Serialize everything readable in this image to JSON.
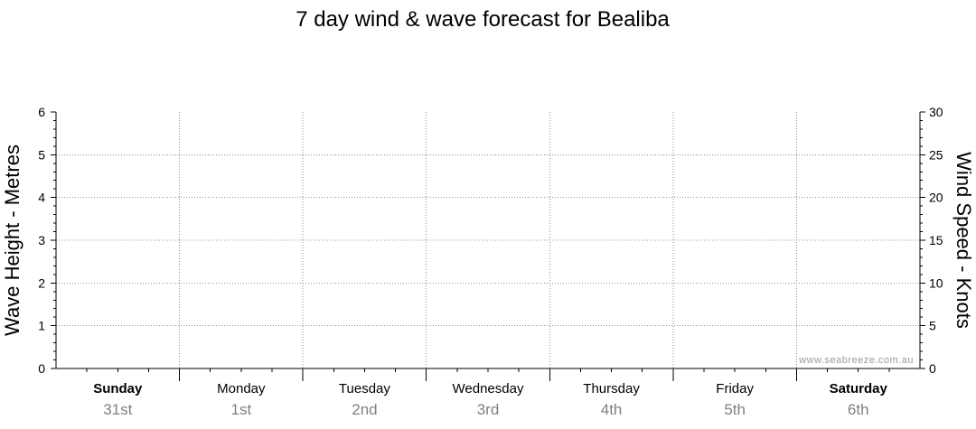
{
  "title": "7 day wind & wave forecast for Bealiba",
  "watermark": "www.seabreeze.com.au",
  "chart_data": {
    "type": "line",
    "title": "7 day wind & wave forecast for Bealiba",
    "left_axis": {
      "label": "Wave Height - Metres",
      "range": [
        0,
        6
      ],
      "ticks": [
        "0",
        "1",
        "2",
        "3",
        "4",
        "5",
        "6"
      ]
    },
    "right_axis": {
      "label": "Wind Speed - Knots",
      "range": [
        0,
        30
      ],
      "ticks": [
        "0",
        "5",
        "10",
        "15",
        "20",
        "25",
        "30"
      ]
    },
    "days": [
      {
        "name": "Sunday",
        "date": "31st",
        "bold": true
      },
      {
        "name": "Monday",
        "date": "1st",
        "bold": false
      },
      {
        "name": "Tuesday",
        "date": "2nd",
        "bold": false
      },
      {
        "name": "Wednesday",
        "date": "3rd",
        "bold": false
      },
      {
        "name": "Thursday",
        "date": "4th",
        "bold": false
      },
      {
        "name": "Friday",
        "date": "5th",
        "bold": false
      },
      {
        "name": "Saturday",
        "date": "6th",
        "bold": true
      }
    ],
    "series": [],
    "grid": true
  }
}
